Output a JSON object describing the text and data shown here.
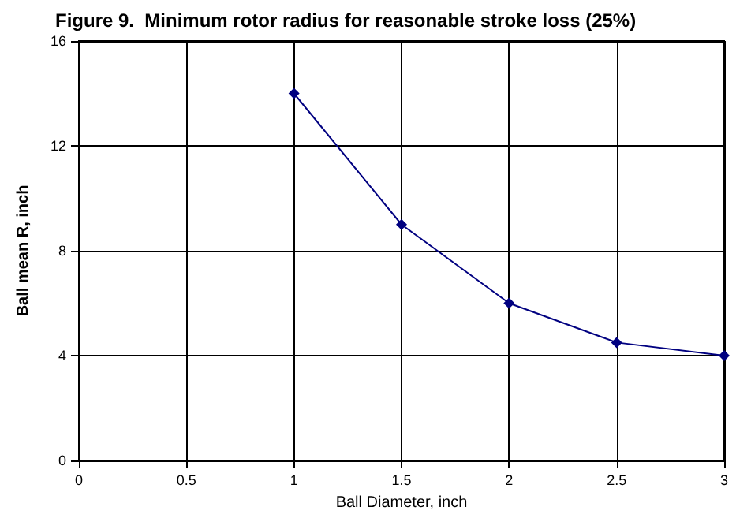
{
  "chart_data": {
    "type": "line",
    "title": "Figure 9.  Minimum rotor radius for reasonable stroke loss (25%)",
    "xlabel": "Ball Diameter, inch",
    "ylabel": "Ball mean R, inch",
    "x": [
      1,
      1.5,
      2,
      2.5,
      3
    ],
    "series": [
      {
        "color": "#000080",
        "values": [
          14,
          9,
          6,
          4.5,
          4
        ]
      }
    ],
    "xlim": [
      0,
      3
    ],
    "xticks": [
      0,
      0.5,
      1,
      1.5,
      2,
      2.5,
      3
    ],
    "ylim": [
      0,
      16
    ],
    "yticks": [
      0,
      4,
      8,
      12,
      16
    ],
    "grid": true,
    "marker": "diamond",
    "line_style": "solid"
  }
}
